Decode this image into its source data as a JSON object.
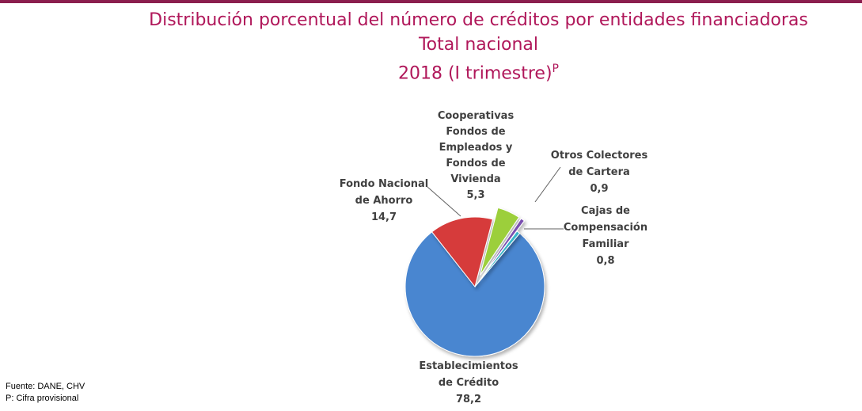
{
  "title": {
    "line1": "Distribución porcentual del número de créditos por entidades financiadoras",
    "line2": "Total nacional",
    "line3": "2018 (I trimestre)",
    "line3_sup": "P"
  },
  "footer": {
    "source": "Fuente: DANE, CHV",
    "note": "P: Cifra provisional"
  },
  "colors": {
    "title": "#b0175a",
    "bar": "#8b1e4e"
  },
  "chart_data": {
    "type": "pie",
    "title": "Distribución porcentual del número de créditos por entidades financiadoras",
    "legend": "none",
    "slices": [
      {
        "label": [
          "Establecimientos",
          "de Crédito"
        ],
        "value": 78.2,
        "value_text": "78,2",
        "color": "#4a86d0",
        "explode": 0
      },
      {
        "label": [
          "Fondo Nacional",
          "de Ahorro"
        ],
        "value": 14.7,
        "value_text": "14,7",
        "color": "#d63b3b",
        "explode": 0
      },
      {
        "label": [
          "Cooperativas",
          "Fondos de",
          "Empleados y",
          "Fondos de",
          "Vivienda"
        ],
        "value": 5.3,
        "value_text": "5,3",
        "color": "#9ccf3a",
        "explode": 1
      },
      {
        "label": [
          "Otros Colectores",
          "de Cartera"
        ],
        "value": 0.9,
        "value_text": "0,9",
        "color": "#7a4fb0",
        "explode": 1
      },
      {
        "label": [
          "Cajas de",
          "Compensación",
          "Familiar"
        ],
        "value": 0.8,
        "value_text": "0,8",
        "color": "#37b5c9",
        "explode": 0
      }
    ]
  }
}
